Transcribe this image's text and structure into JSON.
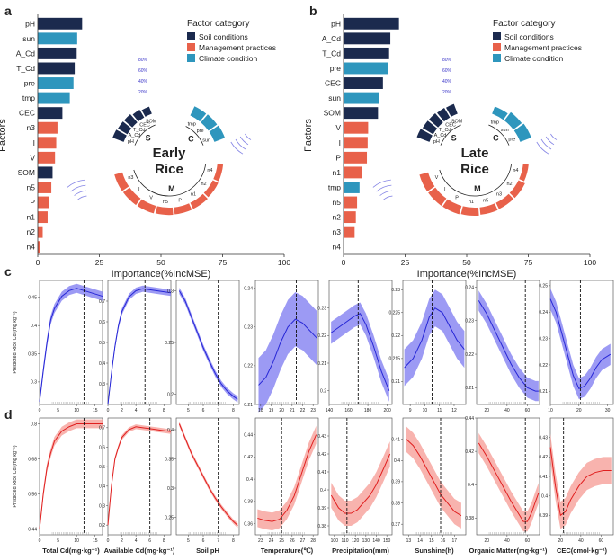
{
  "colors": {
    "soil": "#1b2a4e",
    "management": "#e8614a",
    "climate": "#2e96bd",
    "blue_line": "#2626d6",
    "blue_band": "#7b78f0",
    "red_line": "#e01f1f",
    "red_band": "#f59a93",
    "guide": "#7070e0"
  },
  "chart_data": [
    {
      "panel": "a",
      "type": "bar",
      "orientation": "horizontal",
      "xlabel": "Importance(%IncMSE)",
      "ylabel": "Factors",
      "xlim": [
        0,
        100
      ],
      "xticks": [
        0,
        25,
        50,
        75,
        100
      ],
      "legend": {
        "title": "Factor category",
        "items": [
          "Soil conditions",
          "Management practices",
          "Climate condition"
        ],
        "position": "top-right"
      },
      "categories": [
        "pH",
        "sun",
        "A_Cd",
        "T_Cd",
        "pre",
        "tmp",
        "CEC",
        "n3",
        "I",
        "V",
        "SOM",
        "n5",
        "P",
        "n1",
        "n2",
        "n4"
      ],
      "values": [
        18,
        16,
        15.8,
        15,
        14.5,
        13,
        10,
        8,
        7.5,
        7,
        6,
        5.5,
        4.5,
        4,
        2,
        1
      ],
      "category_type": [
        "soil",
        "climate",
        "soil",
        "soil",
        "climate",
        "climate",
        "soil",
        "management",
        "management",
        "management",
        "soil",
        "management",
        "management",
        "management",
        "management",
        "management"
      ],
      "ring": {
        "center_label": [
          "Early",
          "Rice"
        ],
        "scale_labels": [
          "80%",
          "60%",
          "40%",
          "20%"
        ],
        "groups": [
          {
            "letter": "S",
            "members": [
              "pH",
              "A_Cd",
              "T_Cd",
              "CEC",
              "SOM"
            ],
            "type": "soil",
            "importance": [
              18,
              15.8,
              15,
              10,
              6
            ]
          },
          {
            "letter": "C",
            "members": [
              "tmp",
              "pre",
              "sun"
            ],
            "type": "climate",
            "importance": [
              13,
              14.5,
              16
            ]
          },
          {
            "letter": "M",
            "members": [
              "n4",
              "n2",
              "n1",
              "P",
              "n5",
              "V",
              "I",
              "n3"
            ],
            "type": "management",
            "importance": [
              1,
              2,
              4,
              4.5,
              5.5,
              7,
              7.5,
              8
            ]
          }
        ]
      }
    },
    {
      "panel": "b",
      "type": "bar",
      "orientation": "horizontal",
      "xlabel": "Importance(%IncMSE)",
      "ylabel": "Factors",
      "xlim": [
        0,
        100
      ],
      "xticks": [
        0,
        25,
        50,
        75,
        100
      ],
      "legend": {
        "title": "Factor category",
        "items": [
          "Soil conditions",
          "Management practices",
          "Climate condition"
        ],
        "position": "top-right"
      },
      "categories": [
        "pH",
        "A_Cd",
        "T_Cd",
        "pre",
        "CEC",
        "sun",
        "SOM",
        "V",
        "I",
        "P",
        "n1",
        "tmp",
        "n5",
        "n2",
        "n3",
        "n4"
      ],
      "values": [
        22.5,
        19,
        18.5,
        18,
        16,
        14.5,
        14,
        10,
        9.8,
        9.5,
        7.5,
        6.5,
        5.5,
        5,
        4.5,
        0.3
      ],
      "category_type": [
        "soil",
        "soil",
        "soil",
        "climate",
        "soil",
        "climate",
        "soil",
        "management",
        "management",
        "management",
        "management",
        "climate",
        "management",
        "management",
        "management",
        "management"
      ],
      "ring": {
        "center_label": [
          "Late",
          "Rice"
        ],
        "scale_labels": [
          "80%",
          "60%",
          "40%",
          "20%"
        ],
        "groups": [
          {
            "letter": "S",
            "members": [
              "pH",
              "A_Cd",
              "T_Cd",
              "CEC",
              "SOM"
            ],
            "type": "soil",
            "importance": [
              22.5,
              19,
              18.5,
              16,
              14
            ]
          },
          {
            "letter": "C",
            "members": [
              "tmp",
              "sun",
              "pre"
            ],
            "type": "climate",
            "importance": [
              6.5,
              14.5,
              18
            ]
          },
          {
            "letter": "M",
            "members": [
              "n4",
              "n2",
              "n3",
              "n5",
              "n1",
              "P",
              "I",
              "V"
            ],
            "type": "management",
            "importance": [
              0.3,
              5,
              4.5,
              5.5,
              7.5,
              9.5,
              9.8,
              10
            ]
          }
        ]
      }
    },
    {
      "panel": "c",
      "type": "line",
      "ylabel": "Predicted Rice Cd (mg kg⁻¹)",
      "series": [
        {
          "variable": "Total Cd",
          "xlim": [
            0,
            17
          ],
          "ylim": [
            0.26,
            0.48
          ],
          "xticks": [
            0,
            5,
            10,
            15
          ],
          "yticks": [
            0.3,
            0.35,
            0.4,
            0.45
          ],
          "vline": 12,
          "x": [
            0,
            1,
            2,
            3,
            4,
            6,
            8,
            10,
            12,
            14,
            17
          ],
          "y": [
            0.265,
            0.32,
            0.37,
            0.41,
            0.43,
            0.452,
            0.462,
            0.466,
            0.462,
            0.458,
            0.452
          ],
          "band": 0.008
        },
        {
          "variable": "Available Cd",
          "xlim": [
            0,
            9
          ],
          "ylim": [
            0.2,
            0.8
          ],
          "xticks": [
            0,
            2,
            4,
            6,
            8
          ],
          "yticks": [
            0.3,
            0.4,
            0.5,
            0.6,
            0.7
          ],
          "vline": 5.3,
          "x": [
            0,
            0.5,
            1,
            1.5,
            2,
            3,
            4,
            5,
            6,
            7,
            8,
            9
          ],
          "y": [
            0.2,
            0.35,
            0.48,
            0.58,
            0.65,
            0.72,
            0.75,
            0.76,
            0.755,
            0.75,
            0.745,
            0.74
          ],
          "band": 0.015
        },
        {
          "variable": "Soil pH",
          "xlim": [
            4.2,
            8.4
          ],
          "ylim": [
            0.19,
            0.31
          ],
          "xticks": [
            5,
            6,
            7,
            8
          ],
          "yticks": [
            0.2,
            0.25,
            0.3
          ],
          "vline": 7,
          "x": [
            4.4,
            4.8,
            5.2,
            5.6,
            6,
            6.4,
            6.8,
            7.2,
            7.6,
            8,
            8.3
          ],
          "y": [
            0.3,
            0.29,
            0.275,
            0.26,
            0.245,
            0.232,
            0.22,
            0.21,
            0.203,
            0.198,
            0.195
          ],
          "band": 0.003
        },
        {
          "variable": "Temperature",
          "xlim": [
            17.5,
            23.5
          ],
          "ylim": [
            0.21,
            0.242
          ],
          "xticks": [
            18,
            19,
            20,
            21,
            22,
            23
          ],
          "yticks": [
            0.21,
            0.22,
            0.23,
            0.24
          ],
          "vline": 21.4,
          "x": [
            17.8,
            18.5,
            19.2,
            19.9,
            20.6,
            21.3,
            22,
            22.7,
            23.4
          ],
          "y": [
            0.215,
            0.217,
            0.221,
            0.226,
            0.23,
            0.232,
            0.231,
            0.229,
            0.227
          ],
          "band": 0.007
        },
        {
          "variable": "Precipitation",
          "xlim": [
            140,
            205
          ],
          "ylim": [
            0.195,
            0.24
          ],
          "xticks": [
            140,
            160,
            180,
            200
          ],
          "yticks": [
            0.2,
            0.21,
            0.22,
            0.23
          ],
          "vline": 170,
          "x": [
            142,
            150,
            158,
            166,
            172,
            178,
            186,
            194,
            202
          ],
          "y": [
            0.221,
            0.223,
            0.225,
            0.227,
            0.228,
            0.224,
            0.216,
            0.207,
            0.2
          ],
          "band": 0.004
        },
        {
          "variable": "Sunshine",
          "xlim": [
            8.5,
            12.8
          ],
          "ylim": [
            0.205,
            0.232
          ],
          "xticks": [
            9,
            10,
            11,
            12
          ],
          "yticks": [
            0.21,
            0.215,
            0.22,
            0.225,
            0.23
          ],
          "vline": 10.5,
          "x": [
            8.6,
            9.2,
            9.8,
            10.3,
            10.7,
            11.2,
            11.7,
            12.2,
            12.7
          ],
          "y": [
            0.213,
            0.215,
            0.219,
            0.224,
            0.226,
            0.225,
            0.222,
            0.219,
            0.217
          ],
          "band": 0.004
        },
        {
          "variable": "Organic Matter",
          "xlim": [
            10,
            72
          ],
          "ylim": [
            0.205,
            0.242
          ],
          "xticks": [
            20,
            40,
            60
          ],
          "yticks": [
            0.21,
            0.22,
            0.23,
            0.24
          ],
          "vline": 58,
          "x": [
            12,
            20,
            28,
            36,
            44,
            52,
            60,
            68,
            71
          ],
          "y": [
            0.236,
            0.232,
            0.227,
            0.222,
            0.217,
            0.213,
            0.21,
            0.209,
            0.209
          ],
          "band": 0.003
        },
        {
          "variable": "CEC",
          "xlim": [
            10,
            32
          ],
          "ylim": [
            0.205,
            0.252
          ],
          "xticks": [
            10,
            20,
            30
          ],
          "yticks": [
            0.21,
            0.22,
            0.23,
            0.24,
            0.25
          ],
          "vline": 20.5,
          "x": [
            10,
            12,
            14,
            16,
            18,
            20,
            22,
            24,
            26,
            28,
            31
          ],
          "y": [
            0.245,
            0.24,
            0.232,
            0.224,
            0.216,
            0.211,
            0.212,
            0.215,
            0.219,
            0.222,
            0.224
          ],
          "band": 0.004
        }
      ]
    },
    {
      "panel": "d",
      "type": "line",
      "ylabel": "Predicted Rice Cd (mg kg⁻¹)",
      "series": [
        {
          "variable": "Total Cd(mg·kg⁻¹)",
          "xlim": [
            0,
            17
          ],
          "ylim": [
            0.42,
            0.82
          ],
          "xticks": [
            0,
            5,
            10,
            15
          ],
          "yticks": [
            0.44,
            0.56,
            0.68,
            0.8
          ],
          "vline": 12,
          "x": [
            0,
            1,
            2,
            3,
            4,
            6,
            8,
            10,
            12,
            14,
            17
          ],
          "y": [
            0.44,
            0.56,
            0.65,
            0.7,
            0.74,
            0.775,
            0.79,
            0.8,
            0.8,
            0.8,
            0.8
          ],
          "band": 0.015
        },
        {
          "variable": "Available Cd(mg·kg⁻¹)",
          "xlim": [
            0,
            9
          ],
          "ylim": [
            0.15,
            0.75
          ],
          "xticks": [
            0,
            2,
            4,
            6,
            8
          ],
          "yticks": [
            0.2,
            0.3,
            0.4,
            0.5,
            0.6,
            0.7
          ],
          "vline": 6,
          "x": [
            0,
            0.5,
            1,
            1.5,
            2,
            3,
            4,
            5,
            6,
            7,
            8,
            9
          ],
          "y": [
            0.2,
            0.4,
            0.54,
            0.6,
            0.65,
            0.69,
            0.705,
            0.7,
            0.695,
            0.69,
            0.685,
            0.68
          ],
          "band": 0.012
        },
        {
          "variable": "Soil pH",
          "xlim": [
            4.2,
            8.4
          ],
          "ylim": [
            0.22,
            0.42
          ],
          "xticks": [
            5,
            6,
            7,
            8
          ],
          "yticks": [
            0.25,
            0.3,
            0.35,
            0.4
          ],
          "vline": 7,
          "x": [
            4.4,
            4.8,
            5.2,
            5.6,
            6,
            6.4,
            6.8,
            7.2,
            7.6,
            8,
            8.3
          ],
          "y": [
            0.41,
            0.385,
            0.36,
            0.34,
            0.32,
            0.3,
            0.283,
            0.268,
            0.255,
            0.243,
            0.236
          ],
          "band": 0.004
        },
        {
          "variable": "Temperature(℃)",
          "xlim": [
            22.5,
            28.5
          ],
          "ylim": [
            0.35,
            0.455
          ],
          "xticks": [
            23,
            24,
            25,
            26,
            27,
            28
          ],
          "yticks": [
            0.36,
            0.38,
            0.4,
            0.42,
            0.44
          ],
          "vline": 25,
          "x": [
            22.7,
            23.4,
            24.1,
            24.8,
            25.5,
            26.2,
            26.9,
            27.6,
            28.3
          ],
          "y": [
            0.365,
            0.363,
            0.362,
            0.364,
            0.372,
            0.385,
            0.405,
            0.425,
            0.44
          ],
          "band": 0.008
        },
        {
          "variable": "Precipitation(mm)",
          "xlim": [
            95,
            155
          ],
          "ylim": [
            0.375,
            0.44
          ],
          "xticks": [
            100,
            110,
            120,
            130,
            140,
            150
          ],
          "yticks": [
            0.38,
            0.39,
            0.4,
            0.41,
            0.42,
            0.43
          ],
          "vline": 112,
          "x": [
            97,
            104,
            110,
            116,
            122,
            128,
            134,
            140,
            147,
            153
          ],
          "y": [
            0.397,
            0.39,
            0.387,
            0.387,
            0.389,
            0.393,
            0.397,
            0.403,
            0.412,
            0.42
          ],
          "band": 0.007
        },
        {
          "variable": "Sunshine(h)",
          "xlim": [
            12.5,
            18
          ],
          "ylim": [
            0.365,
            0.42
          ],
          "xticks": [
            13,
            14,
            15,
            16,
            17
          ],
          "yticks": [
            0.37,
            0.38,
            0.39,
            0.4,
            0.41
          ],
          "vline": 15.8,
          "x": [
            12.8,
            13.4,
            14,
            14.6,
            15.2,
            15.8,
            16.4,
            17,
            17.6
          ],
          "y": [
            0.41,
            0.407,
            0.402,
            0.396,
            0.39,
            0.384,
            0.38,
            0.376,
            0.374
          ],
          "band": 0.006
        },
        {
          "variable": "Organic Matter(mg·kg⁻¹)",
          "xlim": [
            10,
            72
          ],
          "ylim": [
            0.37,
            0.44
          ],
          "xticks": [
            20,
            40,
            60
          ],
          "yticks": [
            0.38,
            0.4,
            0.42,
            0.44
          ],
          "vline": 58,
          "x": [
            12,
            20,
            28,
            36,
            44,
            50,
            56,
            60,
            64,
            68,
            71
          ],
          "y": [
            0.425,
            0.417,
            0.408,
            0.399,
            0.39,
            0.384,
            0.378,
            0.378,
            0.383,
            0.39,
            0.395
          ],
          "band": 0.006
        },
        {
          "variable": "CEC(cmol·kg⁻¹)",
          "xlim": [
            10,
            72
          ],
          "ylim": [
            0.38,
            0.44
          ],
          "xticks": [
            20,
            40,
            60
          ],
          "yticks": [
            0.39,
            0.4,
            0.41,
            0.42,
            0.43
          ],
          "vline": 23,
          "x": [
            10,
            15,
            20,
            25,
            30,
            38,
            46,
            54,
            62,
            70
          ],
          "y": [
            0.425,
            0.405,
            0.39,
            0.392,
            0.398,
            0.405,
            0.41,
            0.412,
            0.413,
            0.413
          ],
          "band": 0.007
        }
      ]
    }
  ]
}
